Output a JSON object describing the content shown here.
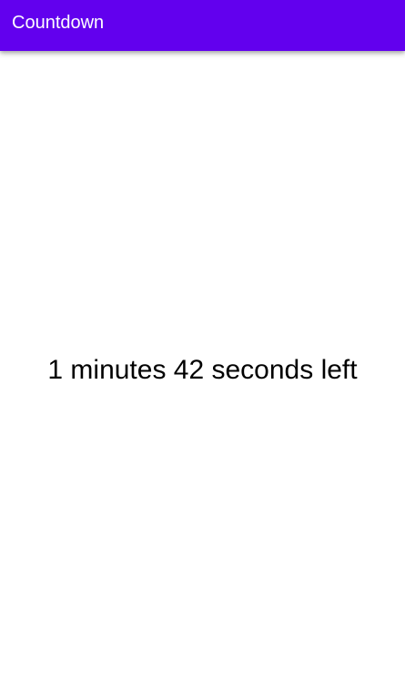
{
  "app_bar": {
    "title": "Countdown",
    "background_color": "#6200EE",
    "text_color": "#FFFFFF"
  },
  "countdown": {
    "text": "1 minutes 42 seconds left",
    "minutes": 1,
    "seconds": 42
  }
}
